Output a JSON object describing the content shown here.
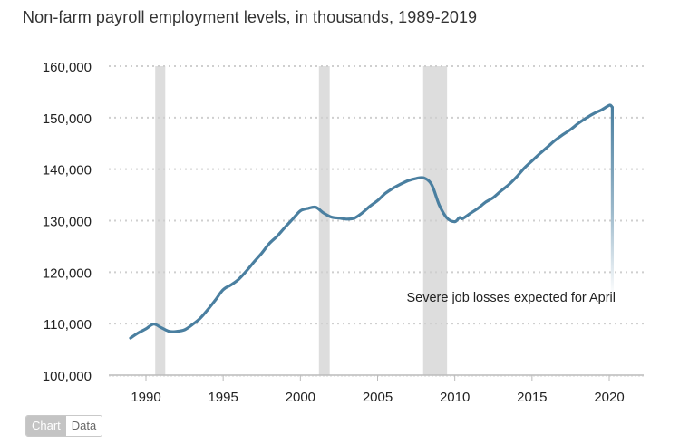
{
  "title": "Non-farm payroll employment levels, in thousands, 1989-2019",
  "toggle": {
    "chart_label": "Chart",
    "data_label": "Data",
    "active": "Chart"
  },
  "colors": {
    "line": "#4a7fa0",
    "recession": "#dddddd",
    "grid": "#cfcfcf",
    "axis": "#bbbbbb",
    "text": "#222222"
  },
  "chart_data": {
    "type": "line",
    "title": "Non-farm payroll employment levels, in thousands, 1989-2019",
    "xlabel": "",
    "ylabel": "",
    "xlim": [
      1988.5,
      2022
    ],
    "ylim": [
      100000,
      160000
    ],
    "grid": true,
    "x_ticks": [
      1990,
      1995,
      2000,
      2005,
      2010,
      2015,
      2020
    ],
    "x_tick_labels": [
      "1990",
      "1995",
      "2000",
      "2005",
      "2010",
      "2015",
      "2020"
    ],
    "y_ticks": [
      100000,
      110000,
      120000,
      130000,
      140000,
      150000,
      160000
    ],
    "y_tick_labels": [
      "100,000",
      "110,000",
      "120,000",
      "130,000",
      "140,000",
      "150,000",
      "160,000"
    ],
    "recessions": [
      {
        "start": 1990.6,
        "end": 1991.25
      },
      {
        "start": 2001.2,
        "end": 2001.9
      },
      {
        "start": 2007.95,
        "end": 2009.5
      }
    ],
    "series": [
      {
        "name": "Non-farm payroll employment",
        "x": [
          1989.0,
          1989.5,
          1990.0,
          1990.5,
          1991.0,
          1991.5,
          1992.0,
          1992.5,
          1993.0,
          1993.5,
          1994.0,
          1994.5,
          1995.0,
          1995.5,
          1996.0,
          1996.5,
          1997.0,
          1997.5,
          1998.0,
          1998.5,
          1999.0,
          1999.5,
          2000.0,
          2000.5,
          2001.0,
          2001.5,
          2002.0,
          2002.5,
          2003.0,
          2003.5,
          2004.0,
          2004.5,
          2005.0,
          2005.5,
          2006.0,
          2006.5,
          2007.0,
          2007.5,
          2008.0,
          2008.5,
          2009.0,
          2009.5,
          2010.0,
          2010.3,
          2010.5,
          2011.0,
          2011.5,
          2012.0,
          2012.5,
          2013.0,
          2013.5,
          2014.0,
          2014.5,
          2015.0,
          2015.5,
          2016.0,
          2016.5,
          2017.0,
          2017.5,
          2018.0,
          2018.5,
          2019.0,
          2019.5,
          2020.0,
          2020.15
        ],
        "values": [
          107200,
          108200,
          109000,
          109900,
          109200,
          108500,
          108500,
          108800,
          109800,
          111000,
          112700,
          114600,
          116600,
          117500,
          118600,
          120200,
          122000,
          123700,
          125600,
          127000,
          128700,
          130300,
          131900,
          132400,
          132600,
          131500,
          130700,
          130500,
          130300,
          130500,
          131500,
          132800,
          133900,
          135300,
          136300,
          137100,
          137800,
          138200,
          138300,
          137000,
          133000,
          130500,
          129800,
          130600,
          130400,
          131400,
          132400,
          133600,
          134500,
          135800,
          137000,
          138500,
          140200,
          141600,
          143000,
          144300,
          145600,
          146700,
          147700,
          148900,
          149900,
          150800,
          151500,
          152400,
          152200
        ]
      }
    ],
    "drop": {
      "x": 2020.2,
      "from": 152200,
      "to": 115500,
      "note": "fades out"
    },
    "annotations": [
      {
        "text": "Severe job losses expected for April",
        "x": 2013.5,
        "y": 115000,
        "anchor": "end"
      }
    ]
  }
}
